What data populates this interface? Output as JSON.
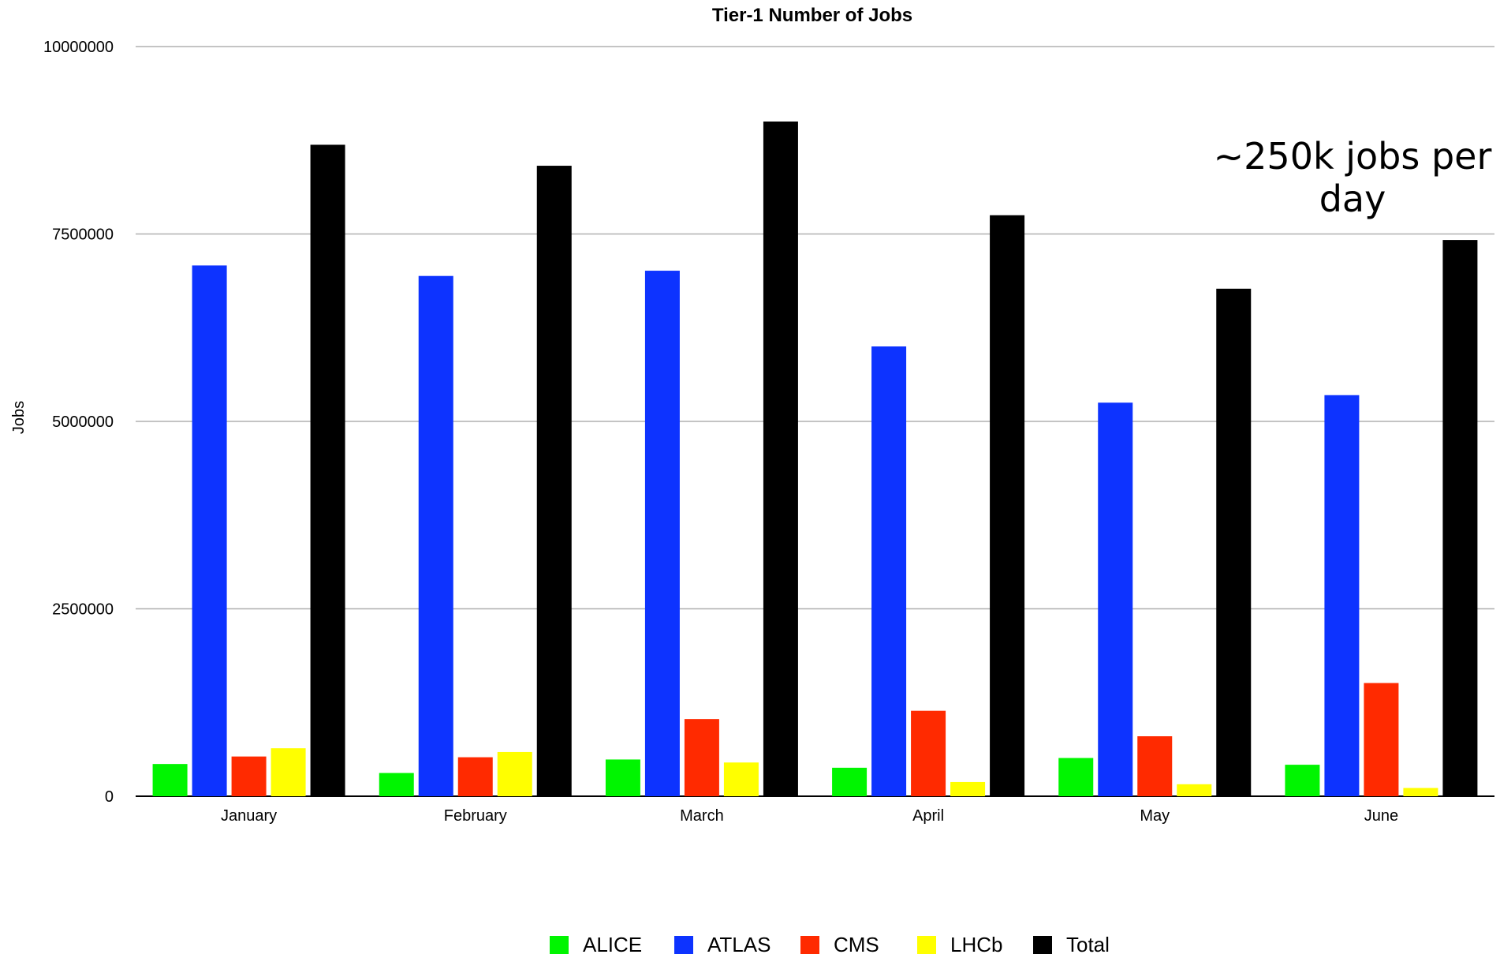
{
  "chart_data": {
    "type": "bar",
    "title": "Tier-1 Number of Jobs",
    "xlabel": "",
    "ylabel": "Jobs",
    "ylim": [
      0,
      10000000
    ],
    "yticks": [
      "0",
      "2500000",
      "5000000",
      "7500000",
      "10000000"
    ],
    "grid": true,
    "legend_position": "bottom",
    "categories": [
      "January",
      "February",
      "March",
      "April",
      "May",
      "June"
    ],
    "series": [
      {
        "name": "ALICE",
        "color": "#00F500",
        "values": [
          430000,
          310000,
          490000,
          380000,
          510000,
          420000
        ]
      },
      {
        "name": "ATLAS",
        "color": "#0D33FF",
        "values": [
          7080000,
          6940000,
          7010000,
          6000000,
          5250000,
          5350000
        ]
      },
      {
        "name": "CMS",
        "color": "#FF2A00",
        "values": [
          530000,
          520000,
          1030000,
          1140000,
          800000,
          1510000
        ]
      },
      {
        "name": "LHCb",
        "color": "#FFFF00",
        "values": [
          640000,
          590000,
          450000,
          190000,
          160000,
          110000
        ]
      },
      {
        "name": "Total",
        "color": "#000000",
        "values": [
          8690000,
          8410000,
          9000000,
          7750000,
          6770000,
          7420000
        ]
      }
    ],
    "annotation": {
      "lines": [
        "~250k jobs per",
        "day"
      ]
    }
  }
}
